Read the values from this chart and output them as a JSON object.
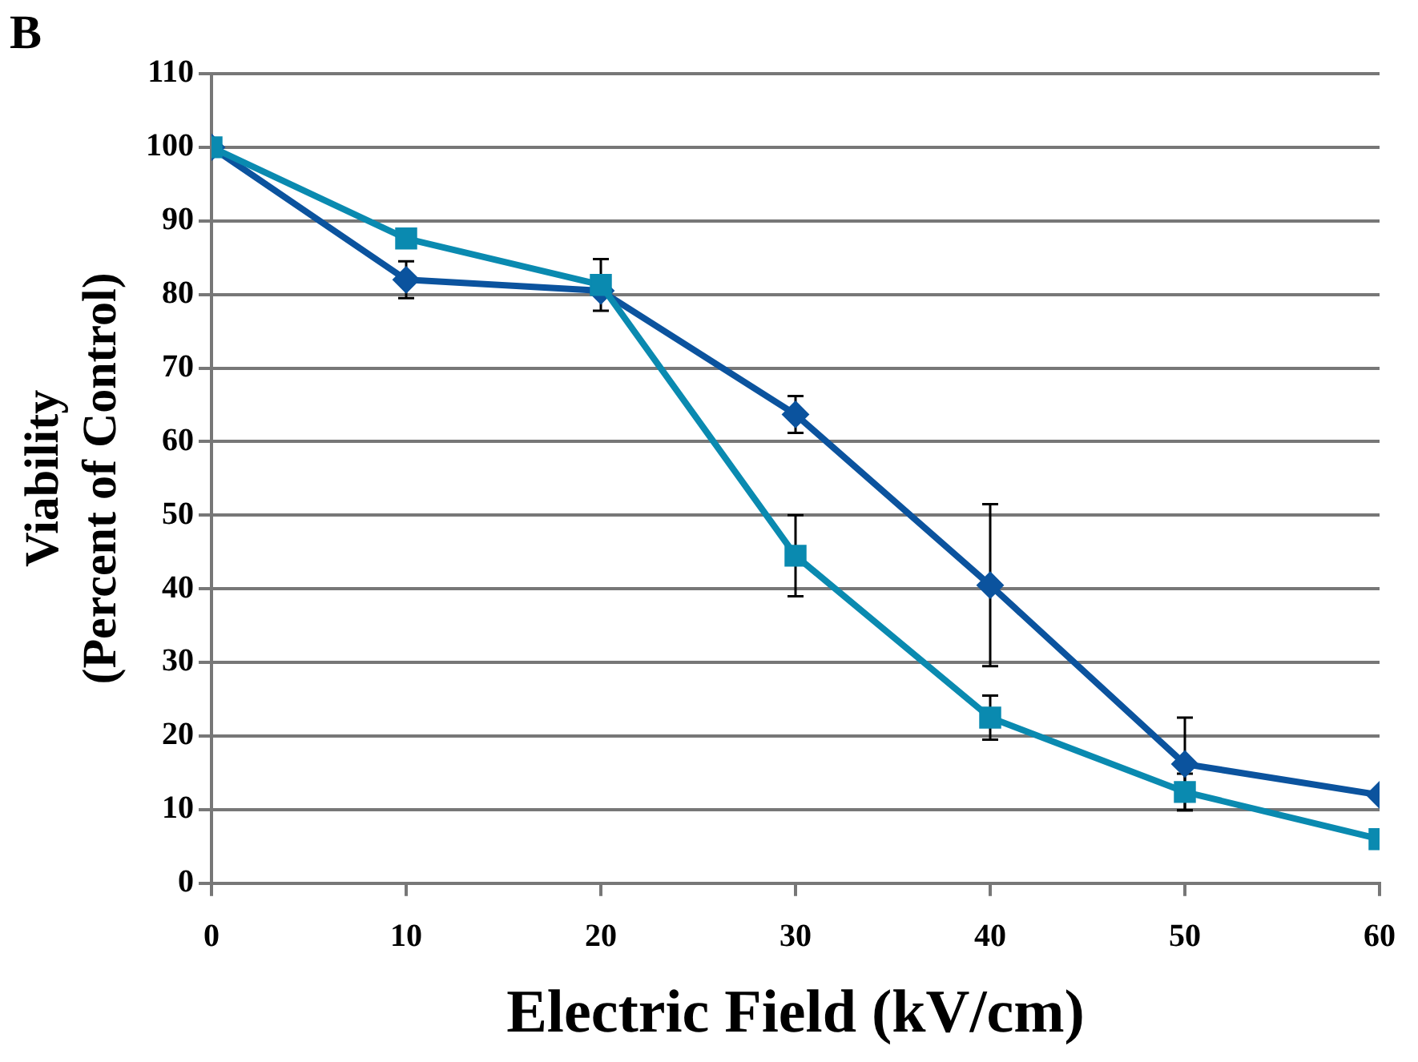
{
  "chart_data": {
    "type": "line",
    "title": "B",
    "xlabel": "Electric Field (kV/cm)",
    "ylabel": "Viability\n(Percent of Control)",
    "x": [
      0,
      10,
      20,
      30,
      40,
      50,
      60
    ],
    "series": [
      {
        "color": "#0b539e",
        "marker": "diamond",
        "values": [
          100,
          82,
          80.5,
          63.7,
          40.5,
          16.2,
          12
        ],
        "errors": [
          null,
          2.5,
          null,
          2.5,
          11,
          6.3,
          null
        ]
      },
      {
        "color": "#0a8ab0",
        "marker": "square",
        "values": [
          100,
          87.6,
          81.3,
          44.5,
          22.5,
          12.4,
          6
        ],
        "errors": [
          null,
          null,
          3.5,
          5.5,
          3,
          2.5,
          null
        ]
      }
    ],
    "xlim": [
      0,
      60
    ],
    "xticks": [
      0,
      10,
      20,
      30,
      40,
      50,
      60
    ],
    "ylim": [
      0,
      110
    ],
    "yticks": [
      0,
      10,
      20,
      30,
      40,
      50,
      60,
      70,
      80,
      90,
      100,
      110
    ],
    "grid": "y",
    "legend": false
  }
}
